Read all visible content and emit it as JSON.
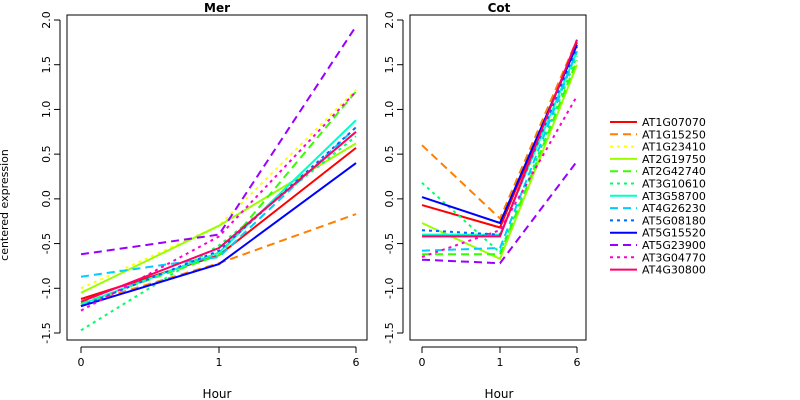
{
  "chart_data": {
    "type": "line",
    "ylabel": "centered expression",
    "xlabel": "Hour",
    "x": [
      "0",
      "1",
      "6"
    ],
    "ylim": [
      -1.5,
      2.0
    ],
    "yticks": [
      "-1.5",
      "-1.0",
      "-0.5",
      "0.0",
      "0.5",
      "1.0",
      "1.5",
      "2.0"
    ],
    "legend_position": "right",
    "series_styles": [
      {
        "name": "AT1G07070",
        "color": "#ff0000",
        "dash": "solid"
      },
      {
        "name": "AT1G15250",
        "color": "#ff8000",
        "dash": "dashed"
      },
      {
        "name": "AT1G23410",
        "color": "#ffff00",
        "dash": "dotted"
      },
      {
        "name": "AT2G19750",
        "color": "#99ff00",
        "dash": "solid"
      },
      {
        "name": "AT2G42740",
        "color": "#33ff00",
        "dash": "dashed"
      },
      {
        "name": "AT3G10610",
        "color": "#00ff66",
        "dash": "dotted"
      },
      {
        "name": "AT3G58700",
        "color": "#00ffcc",
        "dash": "solid"
      },
      {
        "name": "AT4G26230",
        "color": "#00ccff",
        "dash": "dashed"
      },
      {
        "name": "AT5G08180",
        "color": "#0066ff",
        "dash": "dotted"
      },
      {
        "name": "AT5G15520",
        "color": "#0000ff",
        "dash": "solid"
      },
      {
        "name": "AT5G23900",
        "color": "#9900ff",
        "dash": "dashed"
      },
      {
        "name": "AT3G04770",
        "color": "#ff00cc",
        "dash": "dotted"
      },
      {
        "name": "AT4G30800",
        "color": "#ff0066",
        "dash": "solid"
      }
    ],
    "panels": [
      {
        "title": "Mer",
        "series": [
          {
            "name": "AT1G07070",
            "values": [
              -1.12,
              -0.63,
              0.57
            ]
          },
          {
            "name": "AT1G15250",
            "values": [
              -1.18,
              -0.72,
              -0.17
            ]
          },
          {
            "name": "AT1G23410",
            "values": [
              -1.0,
              -0.3,
              1.22
            ]
          },
          {
            "name": "AT2G19750",
            "values": [
              -1.05,
              -0.3,
              0.62
            ]
          },
          {
            "name": "AT2G42740",
            "values": [
              -1.17,
              -0.63,
              1.2
            ]
          },
          {
            "name": "AT3G10610",
            "values": [
              -1.47,
              -0.52,
              0.7
            ]
          },
          {
            "name": "AT3G58700",
            "values": [
              -1.18,
              -0.6,
              0.88
            ]
          },
          {
            "name": "AT4G26230",
            "values": [
              -0.87,
              -0.65,
              0.8
            ]
          },
          {
            "name": "AT5G08180",
            "values": [
              -1.2,
              -0.58,
              0.8
            ]
          },
          {
            "name": "AT5G15520",
            "values": [
              -1.2,
              -0.73,
              0.4
            ]
          },
          {
            "name": "AT5G23900",
            "values": [
              -0.62,
              -0.4,
              1.93
            ]
          },
          {
            "name": "AT3G04770",
            "values": [
              -1.25,
              -0.42,
              1.2
            ]
          },
          {
            "name": "AT4G30800",
            "values": [
              -1.15,
              -0.55,
              0.75
            ]
          }
        ]
      },
      {
        "title": "Cot",
        "series": [
          {
            "name": "AT1G07070",
            "values": [
              -0.07,
              -0.32,
              1.75
            ]
          },
          {
            "name": "AT1G15250",
            "values": [
              0.6,
              -0.22,
              1.78
            ]
          },
          {
            "name": "AT1G23410",
            "values": [
              -0.42,
              -0.4,
              1.62
            ]
          },
          {
            "name": "AT2G19750",
            "values": [
              -0.27,
              -0.67,
              1.5
            ]
          },
          {
            "name": "AT2G42740",
            "values": [
              -0.62,
              -0.62,
              1.55
            ]
          },
          {
            "name": "AT3G10610",
            "values": [
              0.18,
              -0.6,
              1.6
            ]
          },
          {
            "name": "AT3G58700",
            "values": [
              -0.4,
              -0.4,
              1.65
            ]
          },
          {
            "name": "AT4G26230",
            "values": [
              -0.58,
              -0.55,
              1.65
            ]
          },
          {
            "name": "AT5G08180",
            "values": [
              -0.35,
              -0.4,
              1.7
            ]
          },
          {
            "name": "AT5G15520",
            "values": [
              0.02,
              -0.27,
              1.72
            ]
          },
          {
            "name": "AT5G23900",
            "values": [
              -0.68,
              -0.72,
              0.42
            ]
          },
          {
            "name": "AT3G04770",
            "values": [
              -0.65,
              -0.35,
              1.15
            ]
          },
          {
            "name": "AT4G30800",
            "values": [
              -0.42,
              -0.42,
              1.78
            ]
          }
        ]
      }
    ]
  }
}
